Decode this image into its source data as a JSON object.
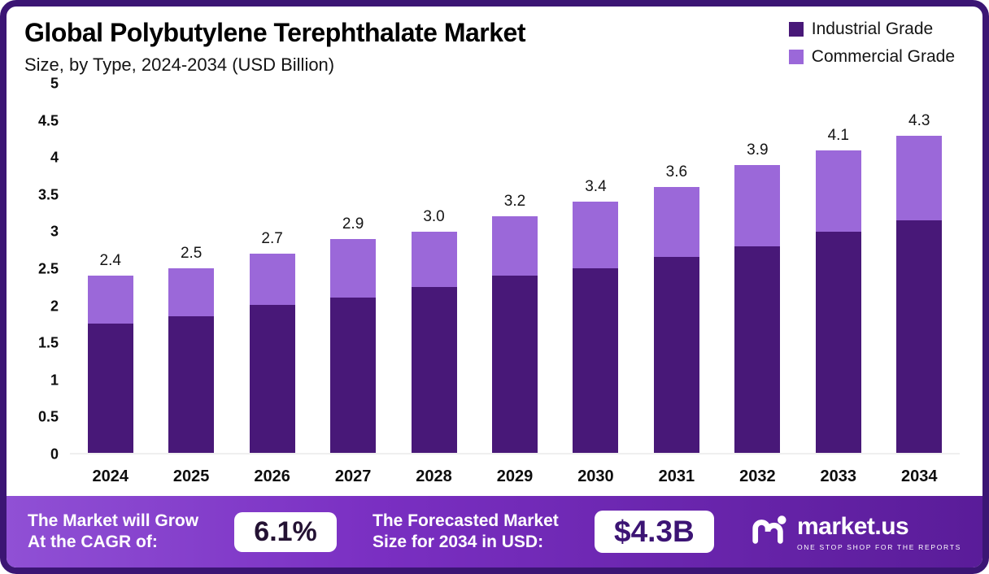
{
  "header": {
    "title": "Global Polybutylene Terephthalate Market",
    "subtitle": "Size, by Type, 2024-2034 (USD Billion)"
  },
  "legend": [
    {
      "label": "Industrial Grade",
      "color": "#481878"
    },
    {
      "label": "Commercial Grade",
      "color": "#9b68d9"
    }
  ],
  "chart_data": {
    "type": "bar",
    "stacked": true,
    "title": "Global Polybutylene Terephthalate Market",
    "subtitle": "Size, by Type, 2024-2034 (USD Billion)",
    "xlabel": "",
    "ylabel": "USD Billion",
    "categories": [
      "2024",
      "2025",
      "2026",
      "2027",
      "2028",
      "2029",
      "2030",
      "2031",
      "2032",
      "2033",
      "2034"
    ],
    "series": [
      {
        "name": "Industrial Grade",
        "color": "#481878",
        "values": [
          1.75,
          1.85,
          2.0,
          2.1,
          2.25,
          2.4,
          2.5,
          2.65,
          2.8,
          3.0,
          3.15
        ]
      },
      {
        "name": "Commercial Grade",
        "color": "#9b68d9",
        "values": [
          0.65,
          0.65,
          0.7,
          0.8,
          0.75,
          0.8,
          0.9,
          0.95,
          1.1,
          1.1,
          1.15
        ]
      }
    ],
    "totals_labels": [
      "2.4",
      "2.5",
      "2.7",
      "2.9",
      "3.0",
      "3.2",
      "3.4",
      "3.6",
      "3.9",
      "4.1",
      "4.3"
    ],
    "ylim": [
      0,
      5
    ],
    "yticks": [
      5,
      4.5,
      4,
      3.5,
      3,
      2.5,
      2,
      1.5,
      1,
      0.5,
      0
    ],
    "grid": false,
    "legend_position": "top-right"
  },
  "footer": {
    "cagr_label": "The Market will Grow\nAt the CAGR of:",
    "cagr_value": "6.1%",
    "forecast_label": "The Forecasted Market\nSize for 2034 in USD:",
    "forecast_value": "$4.3B",
    "brand_name": "market.us",
    "brand_tagline": "ONE STOP SHOP FOR THE REPORTS"
  }
}
